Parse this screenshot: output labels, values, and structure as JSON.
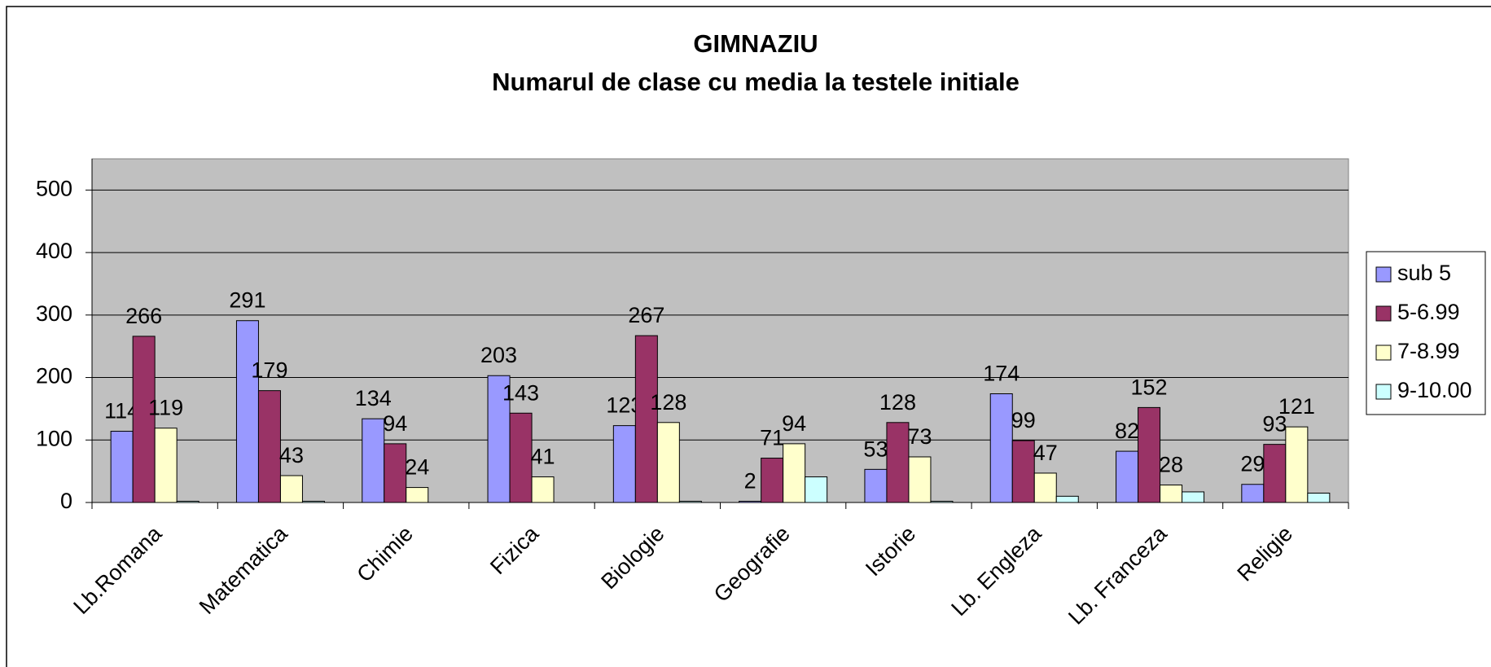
{
  "chart_data": {
    "type": "bar",
    "title": "GIMNAZIU",
    "subtitle": "Numarul de clase cu media la testele initiale",
    "categories": [
      "Lb.Romana",
      "Matematica",
      "Chimie",
      "Fizica",
      "Biologie",
      "Geografie",
      "Istorie",
      "Lb. Engleza",
      "Lb. Franceza",
      "Religie"
    ],
    "series": [
      {
        "name": "sub 5",
        "color": "#9999ff",
        "values": [
          114,
          291,
          134,
          203,
          123,
          2,
          53,
          174,
          82,
          29
        ]
      },
      {
        "name": "5-6.99",
        "color": "#993366",
        "values": [
          266,
          179,
          94,
          143,
          267,
          71,
          128,
          99,
          152,
          93
        ]
      },
      {
        "name": "7-8.99",
        "color": "#ffffcc",
        "values": [
          119,
          43,
          24,
          41,
          128,
          94,
          73,
          47,
          28,
          121
        ]
      },
      {
        "name": "9-10.00",
        "color": "#ccffff",
        "values": [
          2,
          2,
          0,
          0,
          2,
          41,
          2,
          10,
          17,
          15
        ]
      }
    ],
    "ylim": [
      0,
      550
    ],
    "yticks": [
      0,
      100,
      200,
      300,
      400,
      500
    ],
    "grid": true,
    "legend": "right"
  }
}
